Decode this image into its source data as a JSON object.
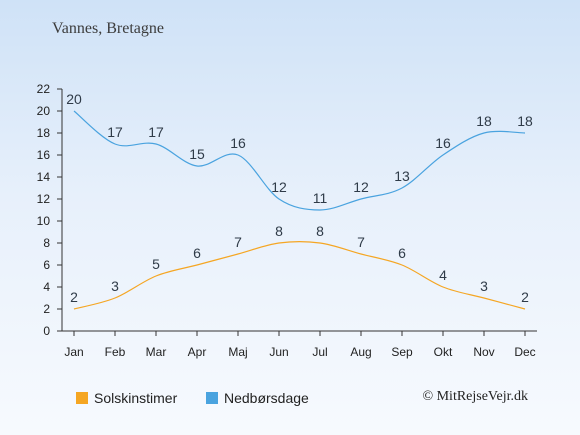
{
  "title": "Vannes, Bretagne",
  "credit": "© MitRejseVejr.dk",
  "colors": {
    "sun": "#f5a623",
    "rain": "#4aa3df",
    "axis": "#333333",
    "text": "#2f3b48"
  },
  "legend": [
    {
      "label": "Solskinstimer",
      "color": "#f5a623"
    },
    {
      "label": "Nedbørsdage",
      "color": "#4aa3df"
    }
  ],
  "chart_data": {
    "type": "line",
    "categories": [
      "Jan",
      "Feb",
      "Mar",
      "Apr",
      "Maj",
      "Jun",
      "Jul",
      "Aug",
      "Sep",
      "Okt",
      "Nov",
      "Dec"
    ],
    "yticks": [
      0,
      2,
      4,
      6,
      8,
      10,
      12,
      14,
      16,
      18,
      20,
      22
    ],
    "ylim": [
      0,
      22
    ],
    "grid": false,
    "legend_position": "bottom",
    "series": [
      {
        "name": "Solskinstimer",
        "color": "#f5a623",
        "values": [
          2,
          3,
          5,
          6,
          7,
          8,
          8,
          7,
          6,
          4,
          3,
          2
        ]
      },
      {
        "name": "Nedbørsdage",
        "color": "#4aa3df",
        "values": [
          20,
          17,
          17,
          15,
          16,
          12,
          11,
          12,
          13,
          16,
          18,
          18
        ]
      }
    ]
  }
}
